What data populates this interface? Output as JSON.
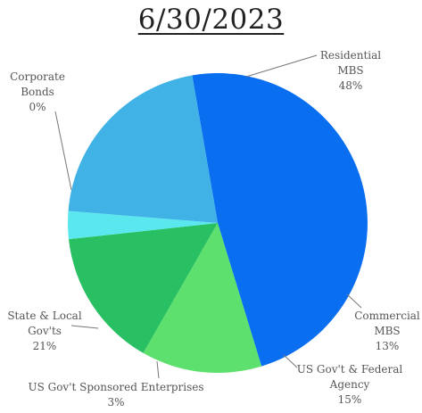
{
  "chart_data": {
    "type": "pie",
    "title": "6/30/2023",
    "slices": [
      {
        "label": [
          "Residential",
          "MBS"
        ],
        "pct_text": "48%",
        "value": 48,
        "color": "#0a6ef0"
      },
      {
        "label": [
          "Commercial",
          "MBS"
        ],
        "pct_text": "13%",
        "value": 13,
        "color": "#5ee06e"
      },
      {
        "label": [
          "US Gov't & Federal",
          "Agency"
        ],
        "pct_text": "15%",
        "value": 15,
        "color": "#28c062"
      },
      {
        "label": [
          "US Gov't Sponsored Enterprises"
        ],
        "pct_text": "3%",
        "value": 3,
        "color": "#5ae8ee"
      },
      {
        "label": [
          "State & Local",
          "Gov'ts"
        ],
        "pct_text": "21%",
        "value": 21,
        "color": "#40b2e6"
      },
      {
        "label": [
          "Corporate",
          "Bonds"
        ],
        "pct_text": "0%",
        "value": 0,
        "color": "#1f6fd0"
      }
    ]
  }
}
